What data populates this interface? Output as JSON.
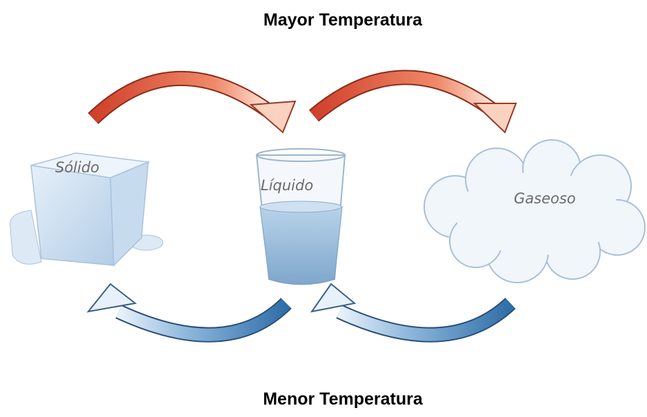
{
  "header": {
    "title": "Mayor Temperatura"
  },
  "footer": {
    "title": "Menor Temperatura"
  },
  "nodes": [
    {
      "label": "Sólido"
    },
    {
      "label": "Líquido"
    },
    {
      "label": "Gaseoso"
    }
  ]
}
